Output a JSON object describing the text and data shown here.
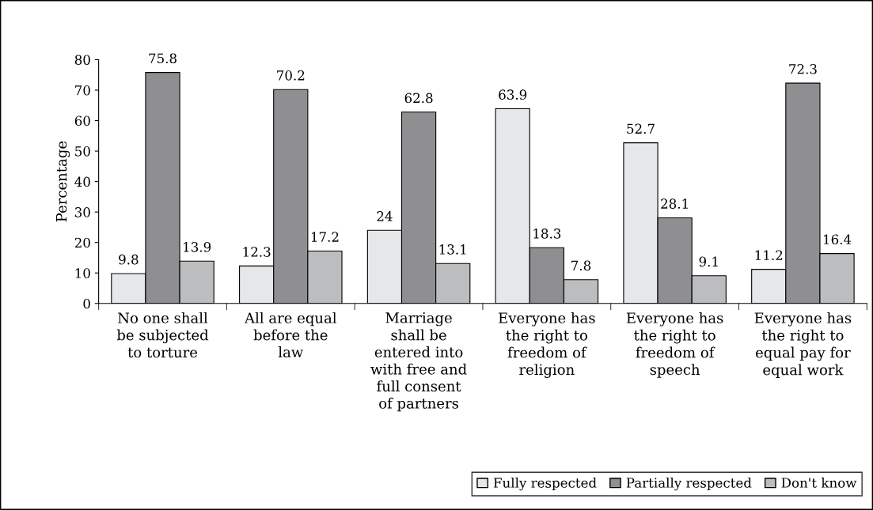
{
  "chart_data": {
    "type": "bar",
    "ylabel": "Percentage",
    "categories": [
      "No one shall\nbe subjected\nto torture",
      "All are equal\nbefore the\nlaw",
      "Marriage\nshall be\nentered into\nwith free and\nfull consent\nof partners",
      "Everyone has\nthe right to\nfreedom of\nreligion",
      "Everyone has\nthe right to\nfreedom of\nspeech",
      "Everyone has\nthe right to\nequal pay for\nequal work"
    ],
    "series": [
      {
        "name": "Fully respected",
        "color": "#e6e7e9",
        "values": [
          9.8,
          12.3,
          24,
          63.9,
          52.7,
          11.2
        ]
      },
      {
        "name": "Partially respected",
        "color": "#8f8f91",
        "values": [
          75.8,
          70.2,
          62.8,
          18.3,
          28.1,
          72.3
        ]
      },
      {
        "name": "Don't know",
        "color": "#bcbdbf",
        "values": [
          13.9,
          17.2,
          13.1,
          7.8,
          9.1,
          16.4
        ]
      }
    ],
    "ylim": [
      0,
      80
    ],
    "yticks": [
      0,
      10,
      20,
      30,
      40,
      50,
      60,
      70,
      80
    ],
    "data_labels": true,
    "grid": false,
    "legend": "bottom right"
  }
}
